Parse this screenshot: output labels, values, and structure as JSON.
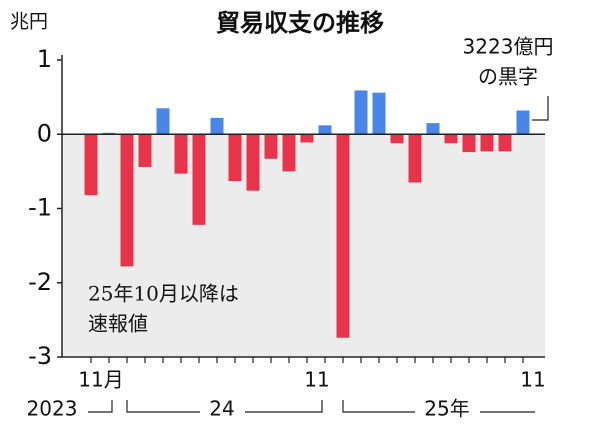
{
  "chart_data": {
    "type": "bar",
    "title": "貿易収支の推移",
    "y_unit": "兆円",
    "categories": [
      "11月",
      null,
      null,
      null,
      null,
      null,
      null,
      null,
      null,
      null,
      null,
      null,
      "11",
      null,
      null,
      null,
      null,
      null,
      null,
      null,
      null,
      null,
      null,
      null,
      "11"
    ],
    "year_labels": [
      "2023",
      "24",
      "25年"
    ],
    "values": [
      -0.82,
      0.02,
      -1.78,
      -0.44,
      0.35,
      -0.53,
      -1.22,
      0.22,
      -0.63,
      -0.76,
      -0.33,
      -0.5,
      -0.11,
      0.12,
      -2.74,
      0.59,
      0.56,
      -0.12,
      -0.65,
      0.15,
      -0.12,
      -0.24,
      -0.23,
      -0.23,
      0.32
    ],
    "positive_color": "#4a86e8",
    "negative_color": "#e8334a",
    "ylim": [
      -3,
      1
    ],
    "yticks": [
      -3,
      -2,
      -1,
      0,
      1
    ],
    "annotations": [
      [
        "3223億円",
        "の黒字"
      ],
      [
        "25年10月以降は",
        "速報値"
      ]
    ]
  }
}
